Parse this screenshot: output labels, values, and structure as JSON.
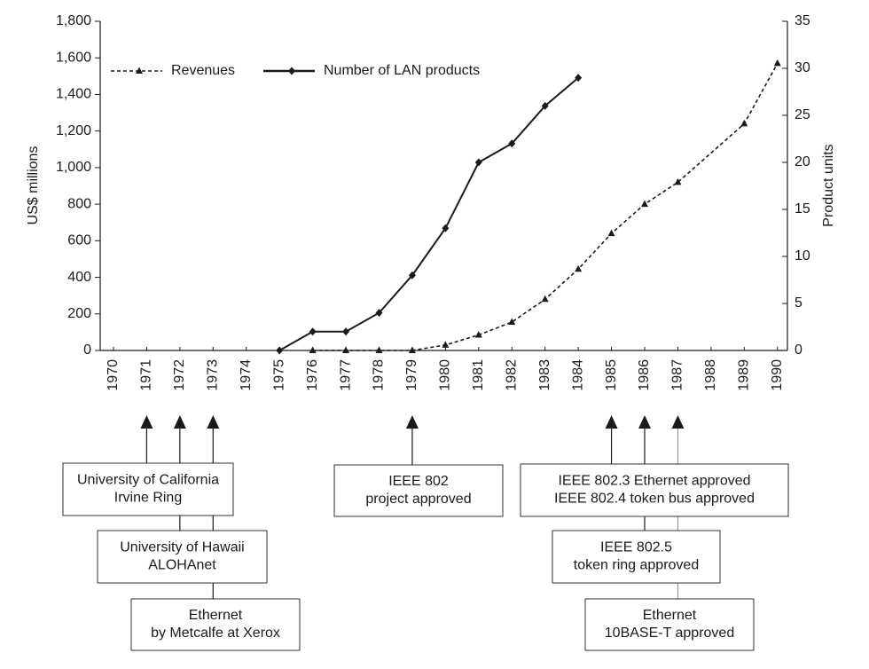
{
  "chart_data": {
    "type": "line",
    "x_axis_type": "numeric",
    "y_label": "US$ millions",
    "y2_label": "Product units",
    "xlim": [
      1969.6,
      1990.3
    ],
    "xticks": [
      1970,
      1971,
      1972,
      1973,
      1974,
      1975,
      1976,
      1977,
      1978,
      1979,
      1980,
      1981,
      1982,
      1983,
      1984,
      1985,
      1986,
      1987,
      1988,
      1989,
      1990
    ],
    "ylim": [
      0,
      1800
    ],
    "yticks": [
      0,
      200,
      400,
      600,
      800,
      {
        "value": 1000,
        "label": "1,000"
      },
      {
        "value": 1200,
        "label": "1,200"
      },
      {
        "value": 1400,
        "label": "1,400"
      },
      {
        "value": 1600,
        "label": "1,600"
      },
      {
        "value": 1800,
        "label": "1,800"
      }
    ],
    "y2lim": [
      0,
      35
    ],
    "y2ticks": [
      0,
      5,
      10,
      15,
      20,
      25,
      30,
      35
    ],
    "legend": "upper left",
    "series": [
      {
        "name": "Revenues",
        "color": "#1a1a1a",
        "dashed": true,
        "marker": "triangle",
        "x": [
          1976,
          1977,
          1978,
          1979,
          1980,
          1981,
          1982,
          1983,
          1984,
          1985,
          1986,
          1987,
          1989,
          1990
        ],
        "values": [
          0,
          0,
          0,
          0,
          30,
          85,
          155,
          280,
          445,
          640,
          800,
          920,
          1240,
          1570
        ]
      },
      {
        "name": "Number of LAN products",
        "color": "#1a1a1a",
        "dashed": false,
        "marker": "diamond",
        "axis": "y2",
        "x": [
          1975,
          1976,
          1977,
          1978,
          1979,
          1980,
          1981,
          1982,
          1983,
          1984
        ],
        "values": [
          0,
          2,
          2,
          4,
          8,
          13,
          20,
          22,
          26,
          29
        ]
      }
    ],
    "annotations": [
      {
        "x": 1971,
        "lines": [
          "University of California",
          "Irvine Ring"
        ]
      },
      {
        "x": 1972,
        "lines": [
          "University of Hawaii",
          "ALOHAnet"
        ]
      },
      {
        "x": 1973,
        "lines": [
          "Ethernet",
          "by Metcalfe at Xerox"
        ]
      },
      {
        "x": 1979,
        "lines": [
          "IEEE 802",
          "project approved"
        ]
      },
      {
        "x": 1985,
        "lines": [
          "IEEE 802.3 Ethernet approved",
          "IEEE 802.4 token bus approved"
        ]
      },
      {
        "x": 1986,
        "lines": [
          "IEEE 802.5",
          "token ring approved"
        ]
      },
      {
        "x": 1987,
        "lines": [
          "Ethernet",
          "10BASE-T approved"
        ]
      }
    ]
  }
}
